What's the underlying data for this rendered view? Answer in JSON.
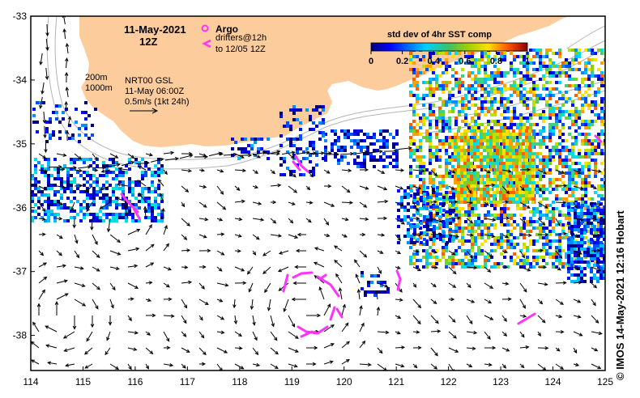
{
  "title": {
    "date": "11-May-2021",
    "time": "12Z"
  },
  "legend": {
    "argo_label": "Argo",
    "drifters_label_1": "drifters@12h",
    "drifters_label_2": "to 12/05 12Z",
    "argo_color": "#ff33ff",
    "drifter_color": "#ff33ff"
  },
  "info": {
    "isobath_1": "200m",
    "isobath_2": "1000m",
    "source": "NRT00 GSL",
    "analysis_time": "11-May 06:00Z",
    "scale": "0.5m/s (1kt 24h)"
  },
  "colorbar": {
    "title": "std dev of 4hr SST comp",
    "ticks": [
      "0",
      "0.2",
      "0.4",
      "0.6",
      "0.8",
      "1"
    ]
  },
  "credit": "© IMOS 14-May-2021 12:16 Hobart",
  "axes": {
    "x_ticks": [
      "114",
      "115",
      "116",
      "117",
      "118",
      "119",
      "120",
      "121",
      "122",
      "123",
      "124",
      "125"
    ],
    "y_ticks": [
      "-33",
      "-34",
      "-35",
      "-36",
      "-37",
      "-38"
    ],
    "x_range": [
      114,
      125
    ],
    "y_range": [
      -38.55,
      -33
    ]
  },
  "colors": {
    "land": "#fdcc9c",
    "ocean": "#ffffff",
    "isobath": "#b4b4b4"
  }
}
